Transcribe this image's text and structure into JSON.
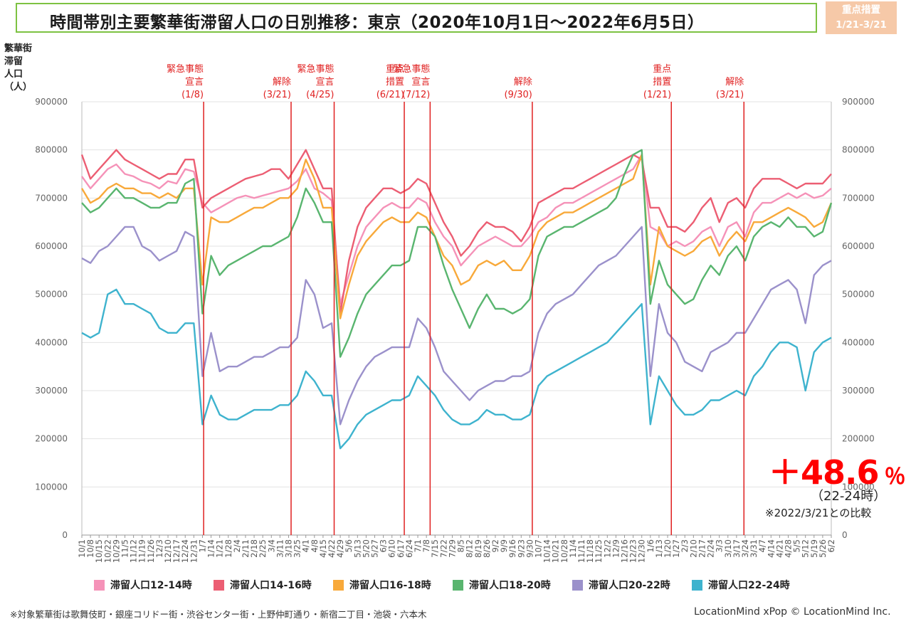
{
  "title": "時間帯別主要繁華街滞留人口の日別推移：東京（2020年10月1日～2022年6月5日）",
  "badge": {
    "line1": "重点措置",
    "line2": "1/21-3/21",
    "color": "#f6c9a8"
  },
  "y_axis_title": [
    "繁華街",
    "滞留",
    "人口",
    "（人）"
  ],
  "annotation": {
    "value": "＋48.6",
    "unit": "％",
    "sub": "（22-24時）",
    "note": "※2022/3/21との比較"
  },
  "footnote": "※対象繁華街は歌舞伎町・銀座コリドー街・渋谷センター街・上野仲町通り・新宿二丁目・池袋・六本木",
  "credit": "LocationMind xPop © LocationMind Inc.",
  "chart_data": {
    "type": "line",
    "ylim": [
      0,
      900000
    ],
    "yticks": [
      0,
      100000,
      200000,
      300000,
      400000,
      500000,
      600000,
      700000,
      800000,
      900000
    ],
    "x_ticks": [
      "10/1",
      "10/8",
      "10/15",
      "10/22",
      "10/29",
      "11/5",
      "11/12",
      "11/19",
      "11/26",
      "12/3",
      "12/10",
      "12/17",
      "12/24",
      "12/31",
      "1/7",
      "1/14",
      "1/21",
      "1/28",
      "2/4",
      "2/11",
      "2/18",
      "2/25",
      "3/4",
      "3/11",
      "3/18",
      "3/25",
      "4/1",
      "4/8",
      "4/15",
      "4/22",
      "4/29",
      "5/6",
      "5/13",
      "5/20",
      "5/27",
      "6/3",
      "6/10",
      "6/17",
      "6/24",
      "7/1",
      "7/8",
      "7/15",
      "7/22",
      "7/29",
      "8/5",
      "8/12",
      "8/19",
      "8/26",
      "9/2",
      "9/9",
      "9/16",
      "9/23",
      "9/30",
      "10/7",
      "10/14",
      "10/21",
      "10/28",
      "11/4",
      "11/11",
      "11/18",
      "11/25",
      "12/2",
      "12/9",
      "12/16",
      "12/23",
      "12/30",
      "1/6",
      "1/13",
      "1/20",
      "1/27",
      "2/3",
      "2/10",
      "2/17",
      "2/24",
      "3/3",
      "3/10",
      "3/17",
      "3/24",
      "3/31",
      "4/7",
      "4/14",
      "4/21",
      "4/28",
      "5/5",
      "5/12",
      "5/19",
      "5/26",
      "6/2"
    ],
    "events": [
      {
        "label": [
          "緊急事態",
          "宣言",
          "(1/8)"
        ],
        "x_index": 14.14
      },
      {
        "label": [
          "解除",
          "(3/21)"
        ],
        "x_index": 24.29
      },
      {
        "label": [
          "緊急事態",
          "宣言",
          "(4/25)"
        ],
        "x_index": 29.29
      },
      {
        "label": [
          "重点",
          "措置",
          "(6/21)"
        ],
        "x_index": 37.43
      },
      {
        "label": [
          "緊急事態",
          "宣言",
          "(7/12)"
        ],
        "x_index": 40.43
      },
      {
        "label": [
          "解除",
          "(9/30)"
        ],
        "x_index": 52.29
      },
      {
        "label": [
          "重点",
          "措置",
          "(1/21)"
        ],
        "x_index": 68.43
      },
      {
        "label": [
          "解除",
          "(3/21)"
        ],
        "x_index": 76.86
      }
    ],
    "series": [
      {
        "name": "滞留人口12-14時",
        "color": "#f592b8",
        "values": [
          745000,
          720000,
          740000,
          760000,
          770000,
          750000,
          745000,
          735000,
          730000,
          720000,
          735000,
          730000,
          760000,
          755000,
          690000,
          670000,
          680000,
          690000,
          700000,
          705000,
          700000,
          705000,
          710000,
          715000,
          720000,
          735000,
          760000,
          720000,
          710000,
          695000,
          480000,
          540000,
          600000,
          640000,
          660000,
          680000,
          690000,
          680000,
          680000,
          700000,
          690000,
          650000,
          620000,
          600000,
          560000,
          580000,
          600000,
          610000,
          620000,
          610000,
          600000,
          600000,
          620000,
          650000,
          660000,
          680000,
          690000,
          690000,
          700000,
          710000,
          720000,
          730000,
          740000,
          750000,
          760000,
          790000,
          640000,
          630000,
          600000,
          610000,
          600000,
          610000,
          630000,
          640000,
          600000,
          640000,
          650000,
          620000,
          670000,
          690000,
          690000,
          700000,
          710000,
          700000,
          710000,
          700000,
          705000,
          720000
        ]
      },
      {
        "name": "滞留人口14-16時",
        "color": "#ec5e73",
        "values": [
          790000,
          740000,
          760000,
          780000,
          800000,
          780000,
          770000,
          760000,
          750000,
          740000,
          750000,
          750000,
          780000,
          780000,
          680000,
          700000,
          710000,
          720000,
          730000,
          740000,
          745000,
          750000,
          760000,
          760000,
          740000,
          770000,
          800000,
          760000,
          720000,
          720000,
          460000,
          570000,
          640000,
          680000,
          700000,
          720000,
          720000,
          710000,
          720000,
          740000,
          730000,
          690000,
          650000,
          620000,
          580000,
          600000,
          630000,
          650000,
          640000,
          640000,
          630000,
          610000,
          640000,
          690000,
          700000,
          710000,
          720000,
          720000,
          730000,
          740000,
          750000,
          760000,
          770000,
          780000,
          790000,
          780000,
          680000,
          680000,
          640000,
          640000,
          630000,
          650000,
          680000,
          700000,
          650000,
          690000,
          700000,
          680000,
          720000,
          740000,
          740000,
          740000,
          730000,
          720000,
          730000,
          730000,
          730000,
          750000
        ]
      },
      {
        "name": "滞留人口16-18時",
        "color": "#f8a93a",
        "values": [
          720000,
          690000,
          700000,
          720000,
          730000,
          720000,
          720000,
          710000,
          710000,
          700000,
          710000,
          700000,
          720000,
          720000,
          520000,
          660000,
          650000,
          650000,
          660000,
          670000,
          680000,
          680000,
          690000,
          700000,
          700000,
          720000,
          780000,
          740000,
          680000,
          680000,
          450000,
          520000,
          580000,
          610000,
          630000,
          650000,
          660000,
          650000,
          650000,
          670000,
          660000,
          620000,
          580000,
          560000,
          520000,
          530000,
          560000,
          570000,
          560000,
          570000,
          550000,
          550000,
          580000,
          630000,
          650000,
          660000,
          670000,
          670000,
          680000,
          690000,
          700000,
          710000,
          720000,
          730000,
          740000,
          790000,
          520000,
          640000,
          600000,
          590000,
          580000,
          590000,
          610000,
          620000,
          580000,
          610000,
          630000,
          610000,
          650000,
          650000,
          660000,
          670000,
          680000,
          670000,
          660000,
          640000,
          650000,
          690000
        ]
      },
      {
        "name": "滞留人口18-20時",
        "color": "#59b56f",
        "values": [
          690000,
          670000,
          680000,
          700000,
          720000,
          700000,
          700000,
          690000,
          680000,
          680000,
          690000,
          690000,
          730000,
          740000,
          460000,
          580000,
          540000,
          560000,
          570000,
          580000,
          590000,
          600000,
          600000,
          610000,
          620000,
          660000,
          720000,
          690000,
          650000,
          650000,
          370000,
          410000,
          460000,
          500000,
          520000,
          540000,
          560000,
          560000,
          570000,
          640000,
          640000,
          620000,
          560000,
          510000,
          470000,
          430000,
          470000,
          500000,
          470000,
          470000,
          460000,
          470000,
          490000,
          580000,
          620000,
          630000,
          640000,
          640000,
          650000,
          660000,
          670000,
          680000,
          700000,
          750000,
          790000,
          800000,
          480000,
          570000,
          520000,
          500000,
          480000,
          490000,
          530000,
          560000,
          540000,
          580000,
          600000,
          570000,
          620000,
          640000,
          650000,
          640000,
          660000,
          640000,
          640000,
          620000,
          630000,
          690000
        ]
      },
      {
        "name": "滞留人口20-22時",
        "color": "#9b91cb",
        "values": [
          575000,
          565000,
          590000,
          600000,
          620000,
          640000,
          640000,
          600000,
          590000,
          570000,
          580000,
          590000,
          630000,
          620000,
          330000,
          420000,
          340000,
          350000,
          350000,
          360000,
          370000,
          370000,
          380000,
          390000,
          390000,
          410000,
          530000,
          500000,
          430000,
          440000,
          230000,
          280000,
          320000,
          350000,
          370000,
          380000,
          390000,
          390000,
          390000,
          450000,
          430000,
          390000,
          340000,
          320000,
          300000,
          280000,
          300000,
          310000,
          320000,
          320000,
          330000,
          330000,
          340000,
          420000,
          460000,
          480000,
          490000,
          500000,
          520000,
          540000,
          560000,
          570000,
          580000,
          600000,
          620000,
          640000,
          330000,
          480000,
          420000,
          400000,
          360000,
          350000,
          340000,
          380000,
          390000,
          400000,
          420000,
          420000,
          450000,
          480000,
          510000,
          520000,
          530000,
          510000,
          440000,
          540000,
          560000,
          570000
        ]
      },
      {
        "name": "滞留人口22-24時",
        "color": "#3eb3ce",
        "values": [
          420000,
          410000,
          420000,
          500000,
          510000,
          480000,
          480000,
          470000,
          460000,
          430000,
          420000,
          420000,
          440000,
          440000,
          230000,
          290000,
          250000,
          240000,
          240000,
          250000,
          260000,
          260000,
          260000,
          270000,
          270000,
          290000,
          340000,
          320000,
          290000,
          290000,
          180000,
          200000,
          230000,
          250000,
          260000,
          270000,
          280000,
          280000,
          290000,
          330000,
          310000,
          290000,
          260000,
          240000,
          230000,
          230000,
          240000,
          260000,
          250000,
          250000,
          240000,
          240000,
          250000,
          310000,
          330000,
          340000,
          350000,
          360000,
          370000,
          380000,
          390000,
          400000,
          420000,
          440000,
          460000,
          480000,
          230000,
          330000,
          300000,
          270000,
          250000,
          250000,
          260000,
          280000,
          280000,
          290000,
          300000,
          290000,
          330000,
          350000,
          380000,
          400000,
          400000,
          390000,
          300000,
          380000,
          400000,
          410000
        ]
      }
    ]
  }
}
